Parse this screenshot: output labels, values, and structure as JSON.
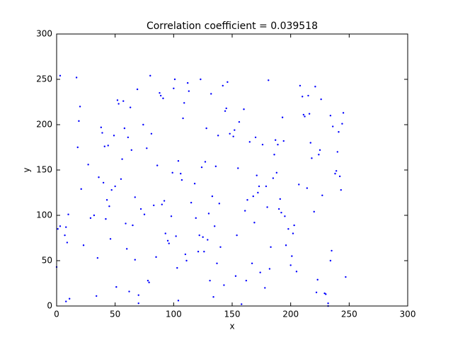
{
  "chart_data": {
    "type": "scatter",
    "title": "Correlation coefficient = 0.039518",
    "x_label": "x",
    "y_label": "y",
    "xlim": [
      0,
      300
    ],
    "ylim": [
      0,
      300
    ],
    "xticks": [
      0,
      50,
      100,
      150,
      200,
      250,
      300
    ],
    "yticks": [
      0,
      50,
      100,
      150,
      200,
      250,
      300
    ],
    "grid": false,
    "series": [
      {
        "color": "#0000ff",
        "x": [
          0,
          1,
          3,
          3,
          8,
          7,
          9,
          8,
          10,
          11,
          17,
          18,
          19,
          20,
          21,
          23,
          27,
          29,
          32,
          34,
          35,
          36,
          38,
          39,
          40,
          41,
          42,
          43,
          44,
          45,
          46,
          47,
          49,
          50,
          51,
          52,
          53,
          55,
          56,
          57,
          58,
          59,
          60,
          61,
          62,
          63,
          64,
          65,
          67,
          67,
          69,
          70,
          70,
          72,
          74,
          75,
          77,
          78,
          79,
          80,
          81,
          83,
          85,
          86,
          88,
          89,
          90,
          91,
          92,
          93,
          95,
          96,
          98,
          99,
          100,
          101,
          102,
          103,
          104,
          104,
          106,
          107,
          108,
          109,
          110,
          111,
          112,
          113,
          115,
          118,
          119,
          121,
          122,
          123,
          124,
          125,
          126,
          127,
          128,
          129,
          130,
          131,
          132,
          133,
          134,
          135,
          136,
          137,
          138,
          139,
          140,
          142,
          143,
          144,
          145,
          146,
          148,
          151,
          152,
          153,
          154,
          155,
          156,
          158,
          160,
          161,
          162,
          163,
          165,
          167,
          168,
          169,
          170,
          171,
          172,
          173,
          174,
          176,
          178,
          179,
          180,
          181,
          182,
          183,
          185,
          186,
          187,
          188,
          189,
          190,
          191,
          192,
          193,
          194,
          195,
          196,
          198,
          200,
          201,
          202,
          203,
          205,
          207,
          208,
          210,
          211,
          212,
          214,
          215,
          216,
          217,
          218,
          220,
          221,
          222,
          223,
          224,
          225,
          226,
          227,
          229,
          230,
          232,
          232,
          234,
          234,
          235,
          236,
          238,
          239,
          240,
          241,
          242,
          243,
          244,
          245,
          247
        ],
        "values": [
          43,
          85,
          88,
          254,
          87,
          78,
          70,
          5,
          101,
          8,
          252,
          175,
          204,
          220,
          129,
          67,
          156,
          97,
          100,
          11,
          53,
          142,
          197,
          191,
          136,
          176,
          96,
          117,
          177,
          110,
          74,
          128,
          188,
          132,
          21,
          227,
          223,
          140,
          162,
          226,
          196,
          91,
          63,
          186,
          16,
          219,
          172,
          89,
          51,
          120,
          239,
          12,
          3,
          107,
          200,
          101,
          174,
          28,
          26,
          254,
          190,
          111,
          54,
          155,
          235,
          232,
          112,
          229,
          116,
          80,
          72,
          69,
          99,
          147,
          240,
          250,
          77,
          42,
          6,
          160,
          146,
          139,
          207,
          224,
          57,
          50,
          246,
          237,
          114,
          135,
          97,
          60,
          78,
          250,
          153,
          76,
          60,
          159,
          196,
          73,
          102,
          28,
          234,
          121,
          10,
          88,
          154,
          47,
          188,
          113,
          65,
          243,
          23,
          215,
          218,
          247,
          190,
          187,
          194,
          33,
          78,
          152,
          203,
          2,
          217,
          105,
          28,
          117,
          181,
          47,
          121,
          92,
          186,
          144,
          125,
          132,
          37,
          178,
          20,
          132,
          109,
          249,
          41,
          65,
          141,
          167,
          183,
          147,
          178,
          107,
          118,
          103,
          208,
          182,
          99,
          67,
          85,
          45,
          55,
          80,
          89,
          38,
          134,
          243,
          231,
          211,
          209,
          130,
          232,
          212,
          180,
          163,
          104,
          242,
          15,
          29,
          167,
          172,
          228,
          122,
          14,
          13,
          3,
          0,
          210,
          50,
          61,
          198,
          146,
          149,
          170,
          192,
          143,
          128,
          201,
          213,
          32
        ]
      }
    ]
  }
}
